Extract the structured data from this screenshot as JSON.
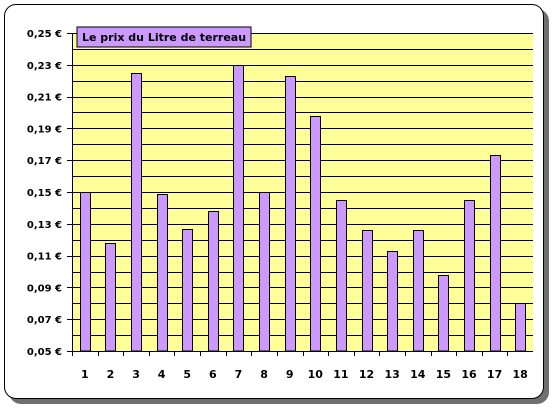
{
  "chart_data": {
    "type": "bar",
    "title": "Le prix du Litre de terreau",
    "xlabel": "",
    "ylabel": "",
    "categories": [
      "1",
      "2",
      "3",
      "4",
      "5",
      "6",
      "7",
      "8",
      "9",
      "10",
      "11",
      "12",
      "13",
      "14",
      "15",
      "16",
      "17",
      "18"
    ],
    "values": [
      0.15,
      0.118,
      0.225,
      0.149,
      0.127,
      0.138,
      0.23,
      0.15,
      0.223,
      0.198,
      0.145,
      0.126,
      0.113,
      0.126,
      0.098,
      0.145,
      0.173,
      0.08
    ],
    "ylim": [
      0.05,
      0.25
    ],
    "y_ticks": [
      "0,05 €",
      "0,07 €",
      "0,09 €",
      "0,11 €",
      "0,13 €",
      "0,15 €",
      "0,17 €",
      "0,19 €",
      "0,21 €",
      "0,23 €",
      "0,25 €"
    ],
    "grid": true,
    "colors": {
      "plot_background": "#ffff99",
      "bar_fill": "#cc99ff",
      "bar_stroke": "#000000",
      "gridline": "#000000",
      "title_background": "#cc99ff"
    }
  }
}
